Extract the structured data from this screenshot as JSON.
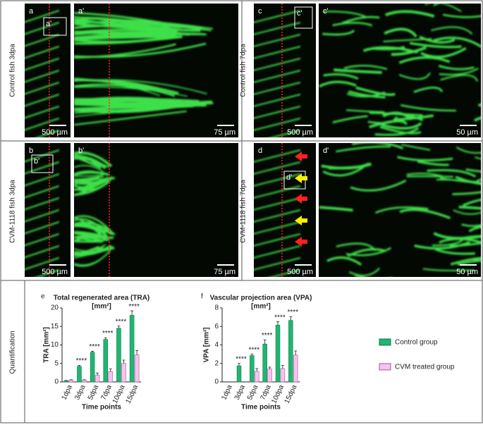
{
  "row_labels": [
    "Control fish 3dpa",
    "CVM-1118  fish 3dpa",
    "Control fish 7dpa",
    "CVM-1118 fish 7dpa"
  ],
  "section_label": "Quantification",
  "panels": [
    {
      "id": "a",
      "scale": "500 µm"
    },
    {
      "id": "a'",
      "scale": "75 µm"
    },
    {
      "id": "c",
      "scale": "500 µm"
    },
    {
      "id": "c'",
      "scale": "50 µm"
    },
    {
      "id": "b",
      "scale": "500 µm"
    },
    {
      "id": "b'",
      "scale": "75 µm"
    },
    {
      "id": "d",
      "scale": "500 µm"
    },
    {
      "id": "d'",
      "scale": "50 µm"
    }
  ],
  "chart_data": [
    {
      "type": "bar",
      "panel": "e",
      "title": "Total regenerated area (TRA)",
      "subtitle": "[mm²]",
      "y_label": "TRA [mm²]",
      "x_label": "Time points",
      "categories": [
        "1dpa",
        "3dpa",
        "5dpa",
        "7dpa",
        "10dpa",
        "15dpa"
      ],
      "series": [
        {
          "name": "Control group",
          "color": "#21b573",
          "values": [
            0.3,
            4.2,
            8,
            11.5,
            14.5,
            18
          ],
          "errors": [
            0.1,
            0.3,
            0.3,
            0.4,
            0.6,
            1.2
          ]
        },
        {
          "name": "CVM treated group",
          "color": "#f7c3ee",
          "values": [
            0.5,
            0.5,
            1.8,
            2.8,
            5,
            7.3
          ],
          "errors": [
            0.1,
            0.1,
            0.6,
            0.7,
            0.9,
            1.2
          ]
        }
      ],
      "annotations": [
        null,
        "****",
        "****",
        "****",
        "****",
        "****"
      ],
      "ylim": [
        0,
        20
      ],
      "yticks": [
        0,
        5,
        10,
        15,
        20
      ]
    },
    {
      "type": "bar",
      "panel": "f",
      "title": "Vascular projection area (VPA)",
      "subtitle": "[mm²]",
      "y_label": "VPA [mm²]",
      "x_label": "Time points",
      "categories": [
        "1dpa",
        "3dpa",
        "5dpa",
        "7dpa",
        "10dpa",
        "15dpa"
      ],
      "series": [
        {
          "color": "#21b573",
          "values": [
            0,
            1.75,
            2.85,
            4.1,
            6.15,
            6.65
          ],
          "errors": [
            0,
            0.25,
            0.15,
            0.45,
            0.35,
            0.4
          ]
        },
        {
          "color": "#f7c3ee",
          "values": [
            0,
            0,
            1.15,
            1.4,
            1.45,
            2.9
          ],
          "errors": [
            0,
            0,
            0.3,
            0.2,
            0.35,
            0.45
          ]
        }
      ],
      "annotations": [
        null,
        "****",
        "****",
        "****",
        "****",
        "****"
      ],
      "ylim": [
        0,
        8
      ],
      "yticks": [
        0,
        2,
        4,
        6,
        8
      ]
    }
  ]
}
